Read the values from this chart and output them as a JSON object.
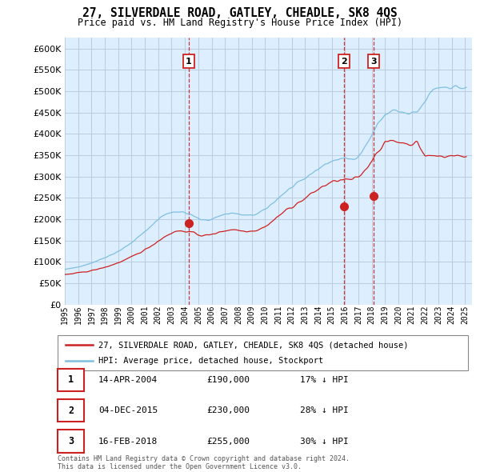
{
  "title": "27, SILVERDALE ROAD, GATLEY, CHEADLE, SK8 4QS",
  "subtitle": "Price paid vs. HM Land Registry's House Price Index (HPI)",
  "ylim": [
    0,
    625000
  ],
  "yticks": [
    0,
    50000,
    100000,
    150000,
    200000,
    250000,
    300000,
    350000,
    400000,
    450000,
    500000,
    550000,
    600000
  ],
  "xlim_start": 1995.0,
  "xlim_end": 2025.5,
  "hpi_color": "#7fbfdf",
  "price_color": "#cc2222",
  "dashed_color": "#cc2222",
  "background_color": "#ffffff",
  "plot_bg_color": "#ddeeff",
  "grid_color": "#bbccdd",
  "legend_label_price": "27, SILVERDALE ROAD, GATLEY, CHEADLE, SK8 4QS (detached house)",
  "legend_label_hpi": "HPI: Average price, detached house, Stockport",
  "transactions": [
    {
      "num": 1,
      "date": "14-APR-2004",
      "price": 190000,
      "pct": "17%",
      "x_year": 2004.29
    },
    {
      "num": 2,
      "date": "04-DEC-2015",
      "price": 230000,
      "pct": "28%",
      "x_year": 2015.92
    },
    {
      "num": 3,
      "date": "16-FEB-2018",
      "price": 255000,
      "pct": "30%",
      "x_year": 2018.12
    }
  ],
  "footnote": "Contains HM Land Registry data © Crown copyright and database right 2024.\nThis data is licensed under the Open Government Licence v3.0."
}
